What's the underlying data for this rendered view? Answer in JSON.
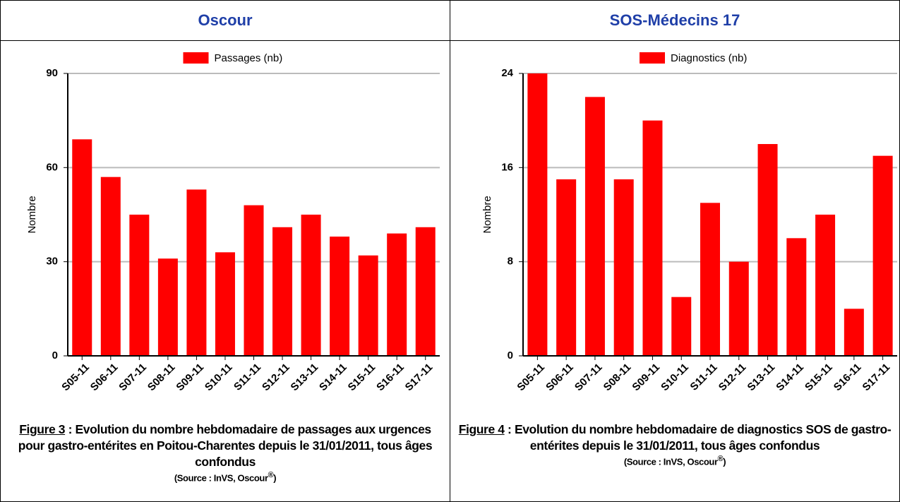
{
  "chart_data": [
    {
      "type": "bar",
      "title": "Oscour",
      "ylabel": "Nombre",
      "categories": [
        "S05-11",
        "S06-11",
        "S07-11",
        "S08-11",
        "S09-11",
        "S10-11",
        "S11-11",
        "S12-11",
        "S13-11",
        "S14-11",
        "S15-11",
        "S16-11",
        "S17-11"
      ],
      "series": [
        {
          "name": "Passages (nb)",
          "color": "#ff0000",
          "values": [
            69,
            57,
            45,
            31,
            53,
            33,
            48,
            41,
            45,
            38,
            32,
            39,
            41
          ]
        }
      ],
      "ylim": [
        0,
        90
      ],
      "yticks": [
        0,
        30,
        60,
        90
      ],
      "grid": true,
      "figure_label": "Figure 3",
      "caption": " : Evolution du nombre hebdomadaire de passages aux urgences pour gastro-entérites en Poitou-Charentes depuis le 31/01/2011, tous âges confondus",
      "source": "(Source : InVS, Oscour",
      "source_sup": "®",
      "source_close": ")"
    },
    {
      "type": "bar",
      "title": "SOS-Médecins 17",
      "ylabel": "Nombre",
      "categories": [
        "S05-11",
        "S06-11",
        "S07-11",
        "S08-11",
        "S09-11",
        "S10-11",
        "S11-11",
        "S12-11",
        "S13-11",
        "S14-11",
        "S15-11",
        "S16-11",
        "S17-11"
      ],
      "series": [
        {
          "name": "Diagnostics (nb)",
          "color": "#ff0000",
          "values": [
            24,
            15,
            22,
            15,
            20,
            5,
            13,
            8,
            18,
            10,
            12,
            4,
            17
          ]
        }
      ],
      "ylim": [
        0,
        24
      ],
      "yticks": [
        0,
        8,
        16,
        24
      ],
      "grid": true,
      "figure_label": "Figure 4",
      "caption": " : Evolution du nombre hebdomadaire de diagnostics SOS de gastro-entérites depuis le 31/01/2011, tous âges confondus",
      "source": "(Source : InVS, Oscour",
      "source_sup": "®",
      "source_close": ")"
    }
  ]
}
